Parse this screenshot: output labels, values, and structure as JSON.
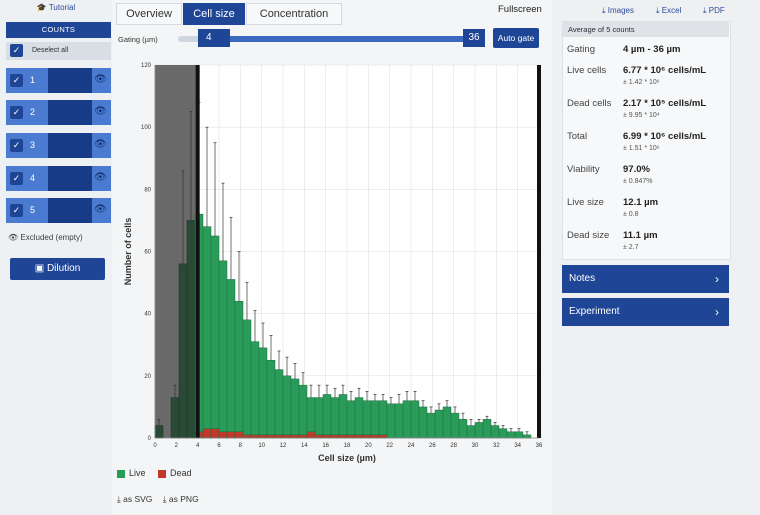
{
  "sidebar": {
    "tutorial": "Tutorial",
    "counts_header": "COUNTS",
    "deselect_all": "Deselect all",
    "counts": [
      {
        "label": "1"
      },
      {
        "label": "2"
      },
      {
        "label": "3"
      },
      {
        "label": "4"
      },
      {
        "label": "5"
      }
    ],
    "excluded": "Excluded (empty)",
    "dilution": "Dilution"
  },
  "tabs": [
    {
      "label": "Overview",
      "active": false
    },
    {
      "label": "Cell size",
      "active": true
    },
    {
      "label": "Concentration",
      "active": false
    }
  ],
  "fullscreen": "Fullscreen",
  "gating": {
    "label": "Gating (µm)",
    "min": "4",
    "max": "36",
    "auto_gate": "Auto gate"
  },
  "chart_data": {
    "type": "bar",
    "xlabel": "Cell size (µm)",
    "ylabel": "Number of cells",
    "xlim": [
      0,
      36
    ],
    "ylim": [
      0,
      120
    ],
    "x_ticks": [
      0,
      2,
      4,
      6,
      8,
      10,
      12,
      14,
      16,
      18,
      20,
      22,
      24,
      26,
      28,
      30,
      32,
      34,
      36
    ],
    "y_ticks": [
      0,
      20,
      40,
      60,
      80,
      100,
      120
    ],
    "gate": [
      4,
      36
    ],
    "bin_width": 0.75,
    "series": [
      {
        "name": "Live",
        "color": "#2a9c5a",
        "x": [
          0.375,
          1.875,
          2.625,
          3.375,
          4.125,
          4.875,
          5.625,
          6.375,
          7.125,
          7.875,
          8.625,
          9.375,
          10.125,
          10.875,
          11.625,
          12.375,
          13.125,
          13.875,
          14.625,
          15.375,
          16.125,
          16.875,
          17.625,
          18.375,
          19.125,
          19.875,
          20.625,
          21.375,
          22.125,
          22.875,
          23.625,
          24.375,
          25.125,
          25.875,
          26.625,
          27.375,
          28.125,
          28.875,
          29.625,
          30.375,
          31.125,
          31.875,
          32.625,
          33.375,
          34.125,
          34.875
        ],
        "values": [
          4,
          13,
          56,
          70,
          72,
          68,
          65,
          57,
          51,
          44,
          38,
          31,
          29,
          25,
          22,
          20,
          19,
          17,
          13,
          13,
          14,
          13,
          14,
          12,
          13,
          12,
          12,
          12,
          11,
          11,
          12,
          12,
          10,
          8,
          9,
          10,
          8,
          6,
          4,
          5,
          6,
          4,
          3,
          2,
          2,
          1
        ],
        "errors": [
          2,
          4,
          30,
          35,
          36,
          32,
          30,
          25,
          20,
          16,
          12,
          10,
          8,
          8,
          6,
          6,
          5,
          4,
          4,
          4,
          3,
          3,
          3,
          3,
          3,
          3,
          2,
          2,
          2,
          3,
          3,
          3,
          2,
          2,
          2,
          2,
          2,
          2,
          2,
          1,
          1,
          1,
          1,
          1,
          1,
          1
        ]
      },
      {
        "name": "Dead",
        "color": "#c0392b",
        "x": [
          4.125,
          4.875,
          5.625,
          6.375,
          7.125,
          7.875,
          8.625,
          9.375,
          10.125,
          10.875,
          11.625,
          12.375,
          13.125,
          13.875,
          14.625,
          15.375,
          16.125,
          16.875,
          17.625,
          18.375,
          19.125,
          19.875,
          20.625,
          21.375
        ],
        "values": [
          2,
          3,
          3,
          2,
          2,
          2,
          1,
          1,
          1,
          1,
          1,
          1,
          1,
          1,
          2,
          1,
          1,
          1,
          1,
          1,
          1,
          1,
          1,
          1
        ]
      }
    ]
  },
  "legend": {
    "live": "Live",
    "dead": "Dead"
  },
  "export": {
    "svg": "as SVG",
    "png": "as PNG"
  },
  "downloads": {
    "images": "Images",
    "excel": "Excel",
    "pdf": "PDF"
  },
  "stats": {
    "header": "Average of 5 counts",
    "rows": [
      {
        "label": "Gating",
        "value": "4 µm - 36 µm",
        "error": ""
      },
      {
        "label": "Live cells",
        "value": "6.77 * 10⁶ cells/mL",
        "error": "± 1.42 * 10⁶"
      },
      {
        "label": "Dead cells",
        "value": "2.17 * 10⁵ cells/mL",
        "error": "± 9.95 * 10⁴"
      },
      {
        "label": "Total",
        "value": "6.99 * 10⁶ cells/mL",
        "error": "± 1.51 * 10⁶"
      },
      {
        "label": "Viability",
        "value": "97.0%",
        "error": "± 0.847%"
      },
      {
        "label": "Live size",
        "value": "12.1 µm",
        "error": "± 0.8"
      },
      {
        "label": "Dead size",
        "value": "11.1 µm",
        "error": "± 2.7"
      }
    ]
  },
  "panels": {
    "notes": "Notes",
    "experiment": "Experiment"
  }
}
